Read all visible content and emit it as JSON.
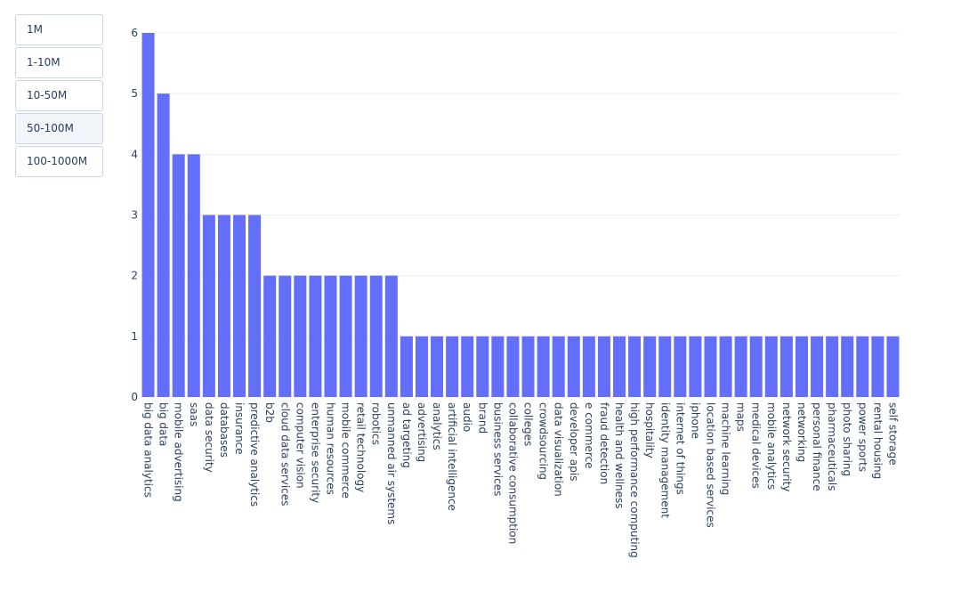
{
  "menu": {
    "buttons": [
      {
        "label": "1M"
      },
      {
        "label": "1-10M"
      },
      {
        "label": "10-50M"
      },
      {
        "label": "50-100M"
      },
      {
        "label": "100-1000M"
      }
    ],
    "active_index": 3
  },
  "colors": {
    "bar": "#636efa",
    "grid": "#eef1f6",
    "text": "#2a3f5f"
  },
  "chart_data": {
    "type": "bar",
    "title": "",
    "xlabel": "",
    "ylabel": "",
    "ylim": [
      0,
      6
    ],
    "yticks": [
      0,
      1,
      2,
      3,
      4,
      5,
      6
    ],
    "grid": true,
    "categories": [
      "big data analytics",
      "big data",
      "mobile advertising",
      "saas",
      "data security",
      "databases",
      "insurance",
      "predictive analytics",
      "b2b",
      "cloud data services",
      "computer vision",
      "enterprise security",
      "human resources",
      "mobile commerce",
      "retail technology",
      "robotics",
      "unmanned air systems",
      "ad targeting",
      "advertising",
      "analytics",
      "artificial intelligence",
      "audio",
      "brand",
      "business services",
      "collaborative consumption",
      "colleges",
      "crowdsourcing",
      "data visualization",
      "developer apis",
      "e commerce",
      "fraud detection",
      "health and wellness",
      "high performance computing",
      "hospitality",
      "identity management",
      "internet of things",
      "iphone",
      "location based services",
      "machine learning",
      "maps",
      "medical devices",
      "mobile analytics",
      "network security",
      "networking",
      "personal finance",
      "pharmaceuticals",
      "photo sharing",
      "power sports",
      "rental housing",
      "self storage"
    ],
    "values": [
      6,
      5,
      4,
      4,
      3,
      3,
      3,
      3,
      2,
      2,
      2,
      2,
      2,
      2,
      2,
      2,
      2,
      1,
      1,
      1,
      1,
      1,
      1,
      1,
      1,
      1,
      1,
      1,
      1,
      1,
      1,
      1,
      1,
      1,
      1,
      1,
      1,
      1,
      1,
      1,
      1,
      1,
      1,
      1,
      1,
      1,
      1,
      1,
      1,
      1
    ]
  }
}
